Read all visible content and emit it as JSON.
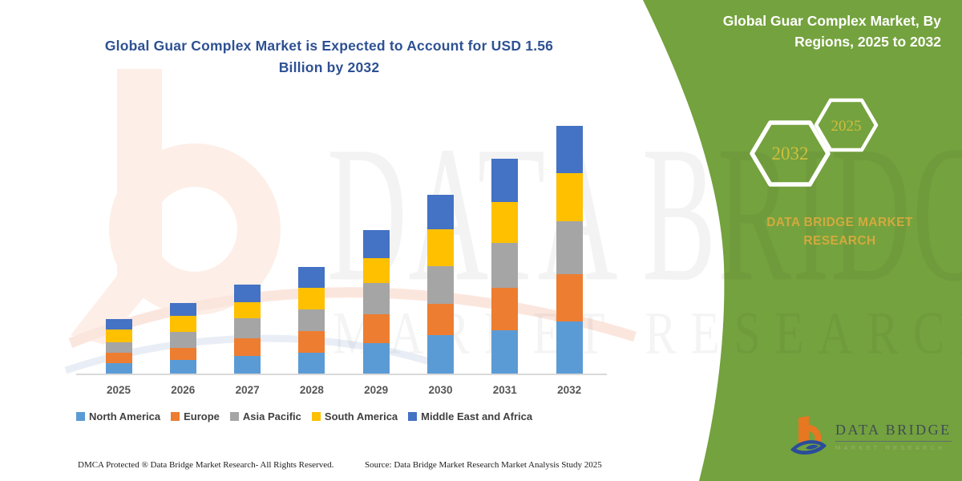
{
  "title": {
    "text": "Global Guar Complex Market is Expected to Account for USD 1.56 Billion by 2032"
  },
  "panel": {
    "title": "Global Guar Complex Market, By Regions, 2025 to 2032",
    "hex_large_year": "2032",
    "hex_small_year": "2025",
    "brand_caption": "DATA BRIDGE MARKET RESEARCH",
    "logo_name": "DATA BRIDGE",
    "logo_sub": "MARKET RESEARCH"
  },
  "watermark": {
    "line1": "DATA BRIDGE",
    "line2": "MARKET RESEARCH"
  },
  "footer": {
    "left": "DMCA Protected ® Data Bridge Market Research-  All Rights Reserved.",
    "source": "Source: Data Bridge Market Research  Market Analysis Study 2025"
  },
  "colors": {
    "panel_green": "#74a23e",
    "title_blue": "#2e5193",
    "gold_text": "#d2aa3e",
    "hex_gold": "#cdbf3e",
    "logo_orange": "#e87722",
    "logo_blue": "#2b4c9b",
    "axis_gray": "#d9d9d9"
  },
  "chart_data": {
    "type": "bar",
    "stacked": true,
    "title": "Global Guar Complex Market is Expected to Account for USD 1.56 Billion by 2032",
    "unit": "USD Billion",
    "categories": [
      "2025",
      "2026",
      "2027",
      "2028",
      "2029",
      "2030",
      "2031",
      "2032"
    ],
    "series": [
      {
        "name": "North America",
        "color": "#5b9bd5",
        "values": [
          0.066,
          0.086,
          0.111,
          0.131,
          0.192,
          0.242,
          0.273,
          0.328
        ]
      },
      {
        "name": "Europe",
        "color": "#ed7d31",
        "values": [
          0.066,
          0.076,
          0.111,
          0.136,
          0.182,
          0.197,
          0.268,
          0.298
        ]
      },
      {
        "name": "Asia Pacific",
        "color": "#a5a5a5",
        "values": [
          0.066,
          0.101,
          0.126,
          0.136,
          0.197,
          0.237,
          0.283,
          0.333
        ]
      },
      {
        "name": "South America",
        "color": "#ffc000",
        "values": [
          0.081,
          0.101,
          0.101,
          0.136,
          0.157,
          0.232,
          0.258,
          0.303
        ]
      },
      {
        "name": "Middle East and Africa",
        "color": "#4472c4",
        "values": [
          0.066,
          0.081,
          0.111,
          0.131,
          0.177,
          0.217,
          0.273,
          0.298
        ]
      }
    ],
    "totals": [
      0.345,
      0.445,
      0.56,
      0.67,
      0.905,
      1.125,
      1.355,
      1.56
    ],
    "ylim": [
      0,
      1.6
    ],
    "grid": false,
    "y_axis_visible": false,
    "legend_position": "bottom"
  }
}
